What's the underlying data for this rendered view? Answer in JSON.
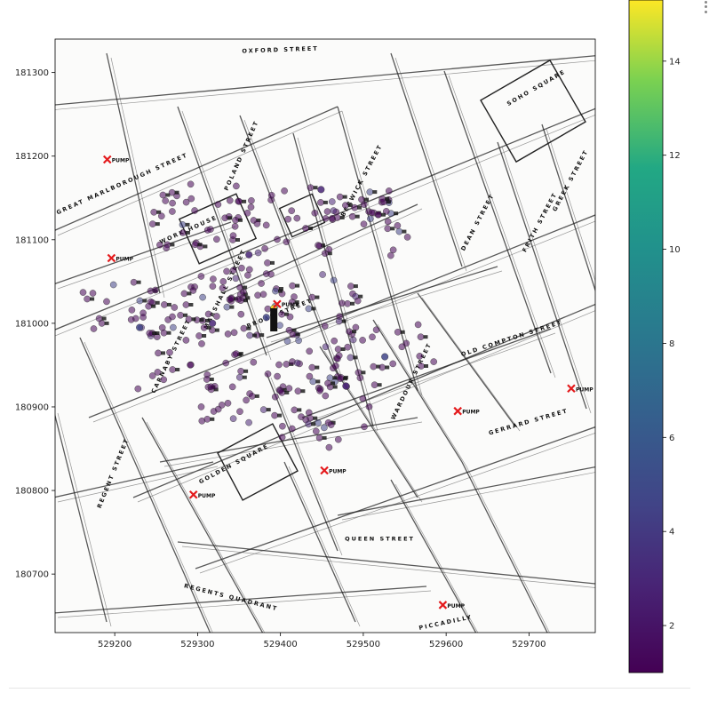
{
  "chart_data": {
    "type": "scatter",
    "title": "",
    "xlabel": "",
    "ylabel": "",
    "xlim": [
      529128,
      529780
    ],
    "ylim": [
      180630,
      181340
    ],
    "x_ticks": [
      529200,
      529300,
      529400,
      529500,
      529600,
      529700
    ],
    "y_ticks": [
      180700,
      180800,
      180900,
      181000,
      181100,
      181200,
      181300
    ],
    "background": "street map of Soho (basemap)",
    "colormap": "viridis",
    "colorbar": {
      "range": [
        1,
        15.3
      ],
      "ticks": [
        2,
        4,
        6,
        8,
        10,
        12,
        14
      ]
    },
    "grid": false,
    "legend": "none",
    "pumps": [
      {
        "x": 529191,
        "y": 181196,
        "label": "PUMP"
      },
      {
        "x": 529196,
        "y": 181078,
        "label": "PUMP"
      },
      {
        "x": 529396,
        "y": 181023,
        "label": "PUMP"
      },
      {
        "x": 529453,
        "y": 180824,
        "label": "PUMP"
      },
      {
        "x": 529614,
        "y": 180895,
        "label": "PUMP"
      },
      {
        "x": 529751,
        "y": 180922,
        "label": "PUMP"
      },
      {
        "x": 529295,
        "y": 180795,
        "label": "PUMP"
      },
      {
        "x": 529596,
        "y": 180663,
        "label": "PUMP"
      }
    ],
    "pump_color": "#e41a1c",
    "street_labels": [
      {
        "text": "GREAT MARLBOROUGH STREET",
        "x": 529210,
        "y": 181165,
        "angle": -24
      },
      {
        "text": "BROAD STREET",
        "x": 529400,
        "y": 181010,
        "angle": -22
      },
      {
        "text": "WORK HOUSE",
        "x": 529290,
        "y": 181110,
        "angle": -24
      },
      {
        "text": "SOHO SQUARE",
        "x": 529710,
        "y": 181280,
        "angle": -30
      },
      {
        "text": "GOLDEN SQUARE",
        "x": 529345,
        "y": 180830,
        "angle": -28
      },
      {
        "text": "REGENTS QUADRANT",
        "x": 529340,
        "y": 180670,
        "angle": 14
      },
      {
        "text": "QUEEN STREET",
        "x": 529520,
        "y": 180740,
        "angle": 0
      },
      {
        "text": "OXFORD STREET",
        "x": 529400,
        "y": 181325,
        "angle": -2
      },
      {
        "text": "OLD COMPTON STREET",
        "x": 529680,
        "y": 180980,
        "angle": -18
      },
      {
        "text": "REGENT STREET",
        "x": 529200,
        "y": 180820,
        "angle": -68
      },
      {
        "text": "DEAN STREET",
        "x": 529640,
        "y": 181120,
        "angle": -62
      },
      {
        "text": "WARDOUR STREET",
        "x": 529560,
        "y": 180930,
        "angle": -64
      },
      {
        "text": "BERWICK STREET",
        "x": 529500,
        "y": 181170,
        "angle": -62
      },
      {
        "text": "POLAND STREET",
        "x": 529355,
        "y": 181200,
        "angle": -66
      },
      {
        "text": "MARSHALL STREET",
        "x": 529335,
        "y": 181040,
        "angle": -64
      },
      {
        "text": "CARNABY STREET",
        "x": 529270,
        "y": 180960,
        "angle": -64
      },
      {
        "text": "GREEK STREET",
        "x": 529752,
        "y": 181170,
        "angle": -62
      },
      {
        "text": "FRITH STREET",
        "x": 529715,
        "y": 181120,
        "angle": -62
      },
      {
        "text": "PICCADILLY",
        "x": 529600,
        "y": 180640,
        "angle": -12
      },
      {
        "text": "GERRARD STREET",
        "x": 529700,
        "y": 180880,
        "angle": -16
      }
    ],
    "deaths_sample": [
      {
        "x": 529230,
        "y": 180995,
        "c": 4
      },
      {
        "x": 529318,
        "y": 181000,
        "c": 3
      },
      {
        "x": 529362,
        "y": 181082,
        "c": 2
      },
      {
        "x": 529392,
        "y": 181018,
        "c": 15
      },
      {
        "x": 529383,
        "y": 181007,
        "c": 5
      },
      {
        "x": 529526,
        "y": 180960,
        "c": 4
      },
      {
        "x": 529479,
        "y": 180925,
        "c": 3
      },
      {
        "x": 529449,
        "y": 181160,
        "c": 2
      }
    ]
  }
}
